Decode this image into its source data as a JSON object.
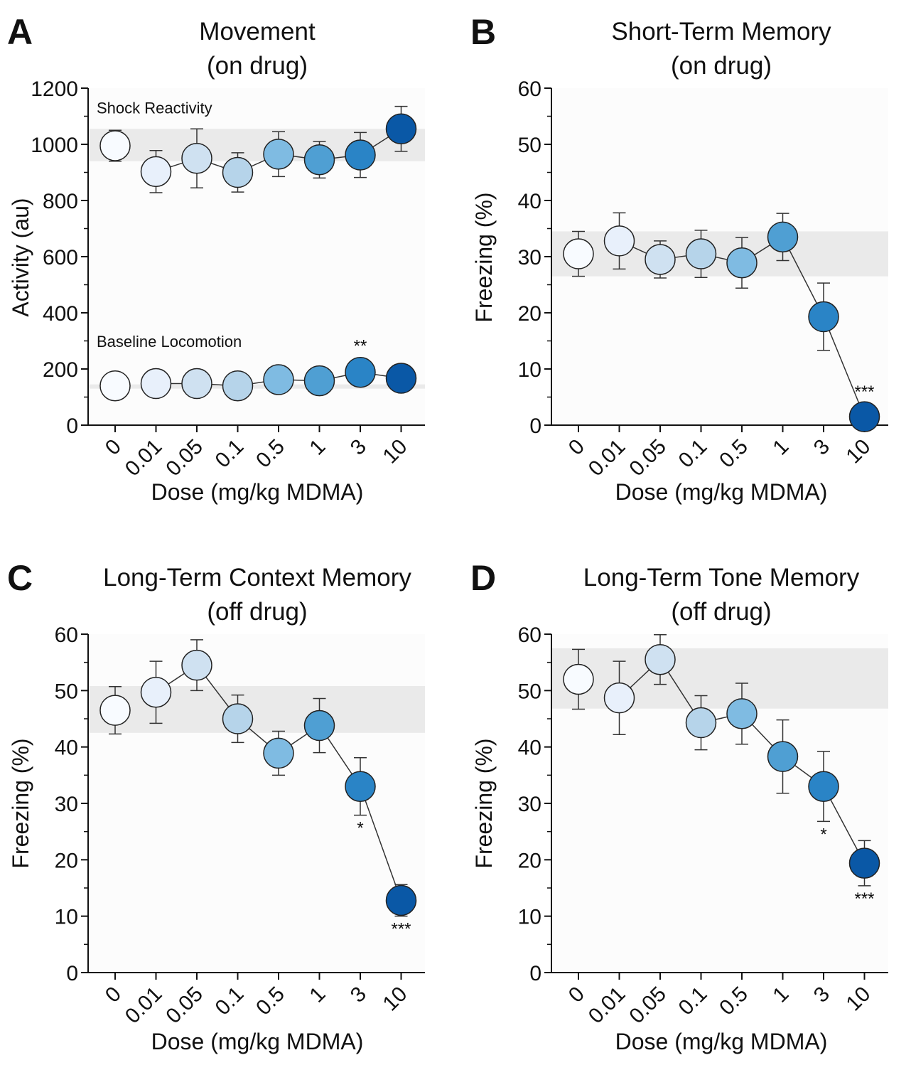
{
  "figure": {
    "colors": [
      "#f8fbff",
      "#e8f0fb",
      "#cfe1f1",
      "#b6d4ea",
      "#7fbbe2",
      "#4f9fd3",
      "#2a84c6",
      "#0a58a6"
    ],
    "band_color": "#e6e6e6",
    "line_color": "#333333"
  },
  "chart_data": [
    {
      "type": "scatter",
      "panel": "A",
      "title": [
        "Movement",
        "(on drug)"
      ],
      "xlabel": "Dose (mg/kg MDMA)",
      "ylabel": "Activity (au)",
      "ylim": [
        0,
        1200
      ],
      "yticks": [
        0,
        200,
        400,
        600,
        800,
        1000,
        1200
      ],
      "categories": [
        "0",
        "0.01",
        "0.05",
        "0.1",
        "0.5",
        "1",
        "3",
        "10"
      ],
      "bands": [
        [
          940,
          1055
        ],
        [
          130,
          145
        ]
      ],
      "band_labels": [
        {
          "text": "Shock Reactivity",
          "y": 1110
        },
        {
          "text": "Baseline Locomotion",
          "y": 278
        }
      ],
      "series": [
        {
          "name": "Shock Reactivity",
          "values": [
            995,
            903,
            950,
            900,
            965,
            945,
            962,
            1055
          ],
          "errors": [
            55,
            75,
            105,
            70,
            80,
            65,
            80,
            80
          ],
          "line_from": 1,
          "significance": [
            "",
            "",
            "",
            "",
            "",
            "",
            "",
            ""
          ]
        },
        {
          "name": "Baseline Locomotion",
          "values": [
            140,
            148,
            148,
            140,
            162,
            158,
            188,
            167
          ],
          "errors": [
            10,
            10,
            10,
            10,
            10,
            10,
            10,
            10
          ],
          "line_from": 1,
          "significance": [
            "",
            "",
            "",
            "",
            "",
            "",
            "**",
            ""
          ]
        }
      ]
    },
    {
      "type": "scatter",
      "panel": "B",
      "title": [
        "Short-Term Memory",
        "(on drug)"
      ],
      "xlabel": "Dose (mg/kg MDMA)",
      "ylabel": "Freezing (%)",
      "ylim": [
        0,
        60
      ],
      "yticks": [
        0,
        10,
        20,
        30,
        40,
        50,
        60
      ],
      "categories": [
        "0",
        "0.01",
        "0.05",
        "0.1",
        "0.5",
        "1",
        "3",
        "10"
      ],
      "bands": [
        [
          26.5,
          34.5
        ]
      ],
      "band_labels": [],
      "series": [
        {
          "name": "Freezing",
          "values": [
            30.5,
            32.8,
            29.5,
            30.5,
            28.9,
            33.5,
            19.3,
            1.5
          ],
          "errors": [
            4,
            5,
            3.3,
            4.2,
            4.5,
            4.2,
            6,
            1.5
          ],
          "line_from": 1,
          "significance": [
            "",
            "",
            "",
            "",
            "",
            "",
            "",
            "***"
          ]
        }
      ]
    },
    {
      "type": "scatter",
      "panel": "C",
      "title": [
        "Long-Term Context Memory",
        "(off drug)"
      ],
      "xlabel": "Dose (mg/kg MDMA)",
      "ylabel": "Freezing (%)",
      "ylim": [
        0,
        60
      ],
      "yticks": [
        0,
        10,
        20,
        30,
        40,
        50,
        60
      ],
      "categories": [
        "0",
        "0.01",
        "0.05",
        "0.1",
        "0.5",
        "1",
        "3",
        "10"
      ],
      "bands": [
        [
          42.5,
          50.8
        ]
      ],
      "band_labels": [],
      "series": [
        {
          "name": "Freezing",
          "values": [
            46.5,
            49.7,
            54.5,
            45,
            38.9,
            43.8,
            33,
            12.8
          ],
          "errors": [
            4.2,
            5.5,
            4.5,
            4.2,
            3.9,
            4.8,
            5.1,
            2.8
          ],
          "line_from": 1,
          "significance": [
            "",
            "",
            "",
            "",
            "",
            "",
            "*",
            "***"
          ]
        }
      ]
    },
    {
      "type": "scatter",
      "panel": "D",
      "title": [
        "Long-Term Tone Memory",
        "(off drug)"
      ],
      "xlabel": "Dose (mg/kg MDMA)",
      "ylabel": "Freezing (%)",
      "ylim": [
        0,
        60
      ],
      "yticks": [
        0,
        10,
        20,
        30,
        40,
        50,
        60
      ],
      "categories": [
        "0",
        "0.01",
        "0.05",
        "0.1",
        "0.5",
        "1",
        "3",
        "10"
      ],
      "bands": [
        [
          46.8,
          57.5
        ]
      ],
      "band_labels": [],
      "series": [
        {
          "name": "Freezing",
          "values": [
            52,
            48.7,
            55.5,
            44.3,
            45.9,
            38.3,
            33,
            19.4
          ],
          "errors": [
            5.3,
            6.5,
            4.4,
            4.8,
            5.4,
            6.5,
            6.2,
            4
          ],
          "line_from": 1,
          "significance": [
            "",
            "",
            "",
            "",
            "",
            "",
            "*",
            "***"
          ]
        }
      ]
    }
  ]
}
